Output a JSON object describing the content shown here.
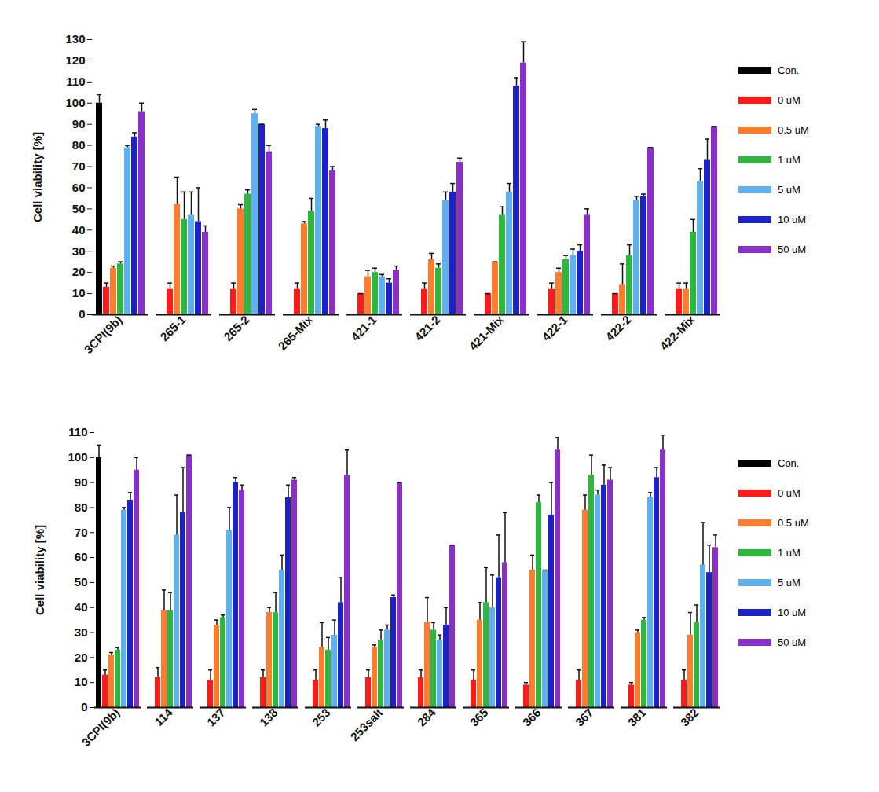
{
  "chart_data": [
    {
      "type": "bar",
      "y_label": "Cell viability [%]",
      "legend": "right",
      "categories": [
        "3CPI(9b)",
        "265-1",
        "265-2",
        "265-Mix",
        "421-1",
        "421-2",
        "421-Mix",
        "422-1",
        "422-2",
        "422-Mix"
      ],
      "ylim": [
        0,
        130
      ],
      "yticks": [
        0,
        10,
        20,
        30,
        40,
        50,
        60,
        70,
        80,
        90,
        100,
        110,
        120,
        130
      ],
      "series": [
        {
          "name": "Con.",
          "color": "#000000",
          "values": [
            100,
            null,
            null,
            null,
            null,
            null,
            null,
            null,
            null,
            null
          ],
          "errors": [
            4,
            null,
            null,
            null,
            null,
            null,
            null,
            null,
            null,
            null
          ]
        },
        {
          "name": "0 uM",
          "color": "#ff1a1a",
          "values": [
            13,
            12,
            12,
            12,
            10,
            12,
            10,
            12,
            10,
            12
          ],
          "errors": [
            2,
            3,
            3,
            3,
            0,
            3,
            0,
            3,
            0,
            3
          ]
        },
        {
          "name": "0.5 uM",
          "color": "#ff7b2e",
          "values": [
            22,
            52,
            50,
            43,
            18,
            26,
            25,
            20,
            14,
            12
          ],
          "errors": [
            1,
            13,
            2,
            1,
            3,
            3,
            0,
            2,
            10,
            3
          ]
        },
        {
          "name": "1 uM",
          "color": "#2db83d",
          "values": [
            24,
            45,
            57,
            49,
            20,
            22,
            47,
            26,
            28,
            39
          ],
          "errors": [
            1,
            13,
            2,
            6,
            2,
            2,
            4,
            2,
            5,
            6
          ]
        },
        {
          "name": "5 uM",
          "color": "#5eb1ee",
          "values": [
            79,
            47,
            95,
            89,
            18,
            54,
            58,
            28,
            54,
            63
          ],
          "errors": [
            1,
            11,
            2,
            1,
            1,
            4,
            4,
            3,
            2,
            6
          ]
        },
        {
          "name": "10 uM",
          "color": "#1c22c8",
          "values": [
            84,
            44,
            90,
            88,
            15,
            58,
            108,
            30,
            56,
            73
          ],
          "errors": [
            2,
            16,
            0,
            4,
            2,
            4,
            4,
            3,
            1,
            10
          ]
        },
        {
          "name": "50 uM",
          "color": "#8a2fc8",
          "values": [
            96,
            39,
            77,
            68,
            21,
            72,
            119,
            47,
            79,
            89
          ],
          "errors": [
            4,
            3,
            3,
            2,
            2,
            2,
            10,
            3,
            0,
            0
          ]
        }
      ]
    },
    {
      "type": "bar",
      "y_label": "Cell viability [%]",
      "legend": "right",
      "categories": [
        "3CPI(9b)",
        "114",
        "137",
        "138",
        "253",
        "253salt",
        "284",
        "365",
        "366",
        "367",
        "381",
        "382"
      ],
      "ylim": [
        0,
        110
      ],
      "yticks": [
        0,
        10,
        20,
        30,
        40,
        50,
        60,
        70,
        80,
        90,
        100,
        110
      ],
      "series": [
        {
          "name": "Con.",
          "color": "#000000",
          "values": [
            100,
            null,
            null,
            null,
            null,
            null,
            null,
            null,
            null,
            null,
            null,
            null
          ],
          "errors": [
            5,
            null,
            null,
            null,
            null,
            null,
            null,
            null,
            null,
            null,
            null,
            null
          ]
        },
        {
          "name": "0 uM",
          "color": "#ff1a1a",
          "values": [
            13,
            12,
            11,
            12,
            11,
            12,
            12,
            11,
            9,
            11,
            9,
            11
          ],
          "errors": [
            2,
            4,
            4,
            3,
            4,
            3,
            3,
            4,
            1,
            4,
            1,
            4
          ]
        },
        {
          "name": "0.5 uM",
          "color": "#ff7b2e",
          "values": [
            21,
            39,
            33,
            38,
            24,
            24,
            34,
            35,
            55,
            79,
            30,
            29
          ],
          "errors": [
            1,
            8,
            2,
            2,
            10,
            1,
            10,
            7,
            6,
            6,
            1,
            9
          ]
        },
        {
          "name": "1 uM",
          "color": "#2db83d",
          "values": [
            23,
            39,
            36,
            38,
            23,
            27,
            31,
            42,
            82,
            93,
            35,
            34
          ],
          "errors": [
            1,
            7,
            1,
            8,
            5,
            4,
            3,
            14,
            3,
            8,
            1,
            7
          ]
        },
        {
          "name": "5 uM",
          "color": "#5eb1ee",
          "values": [
            79,
            69,
            71,
            55,
            29,
            31,
            27,
            40,
            55,
            85,
            84,
            57
          ],
          "errors": [
            1,
            16,
            9,
            6,
            6,
            2,
            2,
            13,
            0,
            2,
            2,
            17
          ]
        },
        {
          "name": "10 uM",
          "color": "#1c22c8",
          "values": [
            83,
            78,
            90,
            84,
            42,
            44,
            33,
            52,
            77,
            89,
            92,
            54
          ],
          "errors": [
            3,
            18,
            2,
            5,
            10,
            1,
            7,
            17,
            13,
            8,
            4,
            11
          ]
        },
        {
          "name": "50 uM",
          "color": "#8a2fc8",
          "values": [
            95,
            101,
            87,
            91,
            93,
            90,
            65,
            58,
            103,
            91,
            103,
            64
          ],
          "errors": [
            5,
            0,
            2,
            1,
            10,
            0,
            0,
            20,
            5,
            5,
            6,
            5
          ]
        }
      ]
    }
  ]
}
